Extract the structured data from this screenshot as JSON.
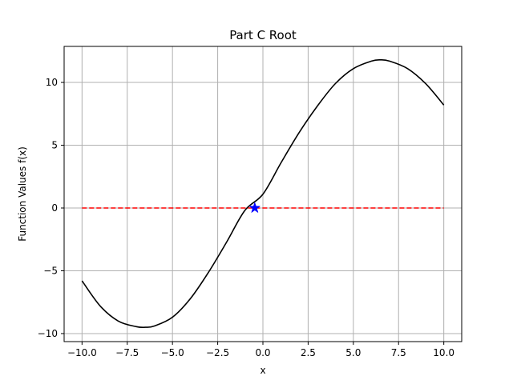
{
  "chart_data": {
    "type": "line",
    "title": "Part C Root",
    "xlabel": "x",
    "ylabel": "Function Values f(x)",
    "xlim": [
      -10.99,
      10.99
    ],
    "ylim": [
      -10.64,
      12.87
    ],
    "x_ticks": [
      -10.0,
      -7.5,
      -5.0,
      -2.5,
      0.0,
      2.5,
      5.0,
      7.5,
      10.0
    ],
    "x_tick_labels": [
      "−10.0",
      "−7.5",
      "−5.0",
      "−2.5",
      "0.0",
      "2.5",
      "5.0",
      "7.5",
      "10.0"
    ],
    "y_ticks": [
      -10,
      -5,
      0,
      5,
      10
    ],
    "y_tick_labels": [
      "−10",
      "−5",
      "0",
      "5",
      "10"
    ],
    "grid": true,
    "series": [
      {
        "style": "solid",
        "color": "#000000",
        "x": [
          -10.0,
          -9.0,
          -8.0,
          -7.0,
          -6.5,
          -6.0,
          -5.0,
          -4.0,
          -3.0,
          -2.0,
          -1.0,
          0.0,
          1.0,
          2.0,
          3.0,
          4.0,
          5.0,
          6.0,
          6.5,
          7.0,
          8.0,
          9.0,
          10.0
        ],
        "y": [
          -5.8,
          -7.8,
          -9.0,
          -9.45,
          -9.5,
          -9.4,
          -8.7,
          -7.2,
          -5.1,
          -2.7,
          -0.2,
          1.1,
          3.6,
          6.0,
          8.1,
          9.9,
          11.1,
          11.7,
          11.8,
          11.7,
          11.1,
          9.9,
          8.2
        ]
      },
      {
        "style": "dashed",
        "color": "#ff0000",
        "x": [
          -10.0,
          10.0
        ],
        "y": [
          0.0,
          0.0
        ]
      }
    ],
    "markers": [
      {
        "shape": "star",
        "color": "#0000ff",
        "x": -0.45,
        "y": 0.0
      }
    ]
  }
}
